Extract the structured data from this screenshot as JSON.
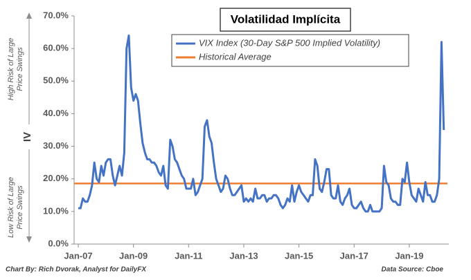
{
  "chart_data": {
    "type": "line",
    "title": "Volatilidad Implícita",
    "y_label": "IV",
    "annotations": {
      "high": [
        "High Risk of Large",
        "Price Swings"
      ],
      "low": [
        "Low Risk of Large",
        "Price Swings"
      ]
    },
    "credit": "Chart By: Rich Dvorak, Analyst for DailyFX",
    "source": "Data Source: Cboe",
    "categories": [
      "Jan-07",
      null,
      null,
      null,
      null,
      null,
      null,
      null,
      null,
      null,
      null,
      null,
      null,
      null,
      null,
      null,
      null,
      null,
      null,
      null,
      null,
      null,
      null,
      null,
      "Jan-09",
      null,
      null,
      null,
      null,
      null,
      null,
      null,
      null,
      null,
      null,
      null,
      null,
      null,
      null,
      null,
      null,
      null,
      null,
      null,
      null,
      null,
      null,
      null,
      "Jan-11",
      null,
      null,
      null,
      null,
      null,
      null,
      null,
      null,
      null,
      null,
      null,
      null,
      null,
      null,
      null,
      null,
      null,
      null,
      null,
      null,
      null,
      null,
      null,
      "Jan-13",
      null,
      null,
      null,
      null,
      null,
      null,
      null,
      null,
      null,
      null,
      null,
      null,
      null,
      null,
      null,
      null,
      null,
      null,
      null,
      null,
      null,
      null,
      null,
      "Jan-15",
      null,
      null,
      null,
      null,
      null,
      null,
      null,
      null,
      null,
      null,
      null,
      null,
      null,
      null,
      null,
      null,
      null,
      null,
      null,
      null,
      null,
      null,
      null,
      "Jan-17",
      null,
      null,
      null,
      null,
      null,
      null,
      null,
      null,
      null,
      null,
      null,
      null,
      null,
      null,
      null,
      null,
      null,
      null,
      null,
      null,
      null,
      null,
      null,
      "Jan-19",
      null,
      null,
      null,
      null,
      null,
      null,
      null,
      null,
      null,
      null,
      null,
      null,
      null,
      null,
      null
    ],
    "series": [
      {
        "name": "VIX Index (30-Day S&P 500 Implied Volatility)",
        "color": "#4472c4",
        "values": [
          11,
          11,
          14,
          13,
          13,
          15,
          18,
          25,
          20,
          19,
          24,
          21,
          25,
          26,
          26,
          21,
          18,
          21,
          24,
          21,
          28,
          60,
          64,
          48,
          44,
          46,
          44,
          37,
          31,
          28,
          26,
          26,
          25,
          25,
          24,
          22,
          21,
          24,
          18,
          17,
          32,
          30,
          26,
          25,
          23,
          21,
          20,
          17,
          17,
          17,
          20,
          15,
          16,
          18,
          20,
          36,
          38,
          33,
          31,
          25,
          20,
          18,
          16,
          17,
          21,
          20,
          17,
          15,
          15,
          16,
          17,
          18,
          13,
          14,
          13,
          14,
          13,
          17,
          14,
          14,
          15,
          15,
          13,
          14,
          14,
          15,
          15,
          14,
          12,
          11,
          12,
          14,
          13,
          18,
          13,
          16,
          18,
          16,
          15,
          14,
          13,
          15,
          15,
          26,
          24,
          17,
          16,
          19,
          23,
          23,
          15,
          14,
          14,
          18,
          13,
          12,
          14,
          15,
          17,
          12,
          11,
          11,
          12,
          13,
          11,
          10,
          10,
          12,
          10,
          10,
          10,
          10,
          11,
          24,
          19,
          18,
          14,
          13,
          13,
          12,
          12,
          20,
          19,
          25,
          19,
          15,
          14,
          13,
          17,
          15,
          13,
          19,
          15,
          15,
          13,
          13,
          15,
          20,
          62,
          35
        ]
      }
    ],
    "average": {
      "name": "Historical Average",
      "color": "#ed7d31",
      "value": 18.6
    },
    "ylim": [
      0,
      70
    ],
    "yticks": [
      {
        "value": 0,
        "label": "0.0%"
      },
      {
        "value": 10,
        "label": "10.0%"
      },
      {
        "value": 20,
        "label": "20.0%"
      },
      {
        "value": 30,
        "label": "30.0%"
      },
      {
        "value": 40,
        "label": "40.0%"
      },
      {
        "value": 50,
        "label": "50.0%"
      },
      {
        "value": 60,
        "label": "60.0%"
      },
      {
        "value": 70,
        "label": "70.0%"
      }
    ]
  }
}
